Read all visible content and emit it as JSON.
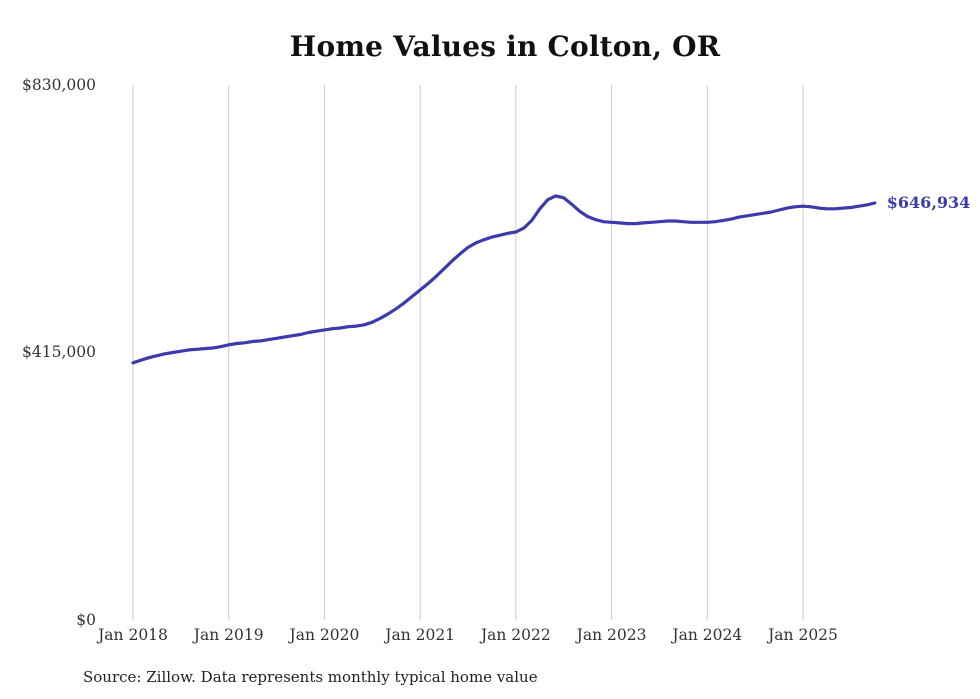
{
  "title": "Home Values in Colton, OR",
  "source": "Source: Zillow. Data represents monthly typical home value",
  "end_label": "$646,934",
  "colors": {
    "line": "#3b3bab",
    "grid": "#cccccc",
    "text": "#333333",
    "title": "#111111"
  },
  "y_axis": {
    "labels": [
      "$830,000",
      "$415,000",
      "$0"
    ],
    "values": [
      830000,
      415000,
      0
    ]
  },
  "x_axis": {
    "labels": [
      "Jan 2018",
      "Jan 2019",
      "Jan 2020",
      "Jan 2021",
      "Jan 2022",
      "Jan 2023",
      "Jan 2024",
      "Jan 2025"
    ]
  },
  "chart_data": {
    "type": "line",
    "title": "Home Values in Colton, OR",
    "series_name": "Typical home value (USD)",
    "start_month": "2018-01",
    "end_month": "2025-10",
    "frequency": "monthly",
    "ylim": [
      0,
      830000
    ],
    "grid": "vertical-only",
    "final_value": 646934,
    "final_value_label": "$646,934",
    "values": [
      399000,
      403000,
      407000,
      410000,
      413000,
      415000,
      417000,
      419000,
      420000,
      421000,
      422000,
      424000,
      427000,
      429000,
      430000,
      432000,
      433000,
      435000,
      437000,
      439000,
      441000,
      443000,
      446000,
      448000,
      450000,
      452000,
      453000,
      455000,
      456000,
      458000,
      462000,
      468000,
      475000,
      483000,
      492000,
      502000,
      512000,
      522000,
      533000,
      545000,
      557000,
      568000,
      578000,
      585000,
      590000,
      594000,
      597000,
      600000,
      602000,
      608000,
      620000,
      638000,
      652000,
      658000,
      655000,
      645000,
      634000,
      626000,
      621000,
      618000,
      617000,
      616000,
      615000,
      615000,
      616000,
      617000,
      618000,
      619000,
      619000,
      618000,
      617000,
      617000,
      617000,
      618000,
      620000,
      622000,
      625000,
      627000,
      629000,
      631000,
      633000,
      636000,
      639000,
      641000,
      642000,
      641000,
      639000,
      638000,
      638000,
      639000,
      640000,
      642000,
      644000,
      646934
    ]
  }
}
